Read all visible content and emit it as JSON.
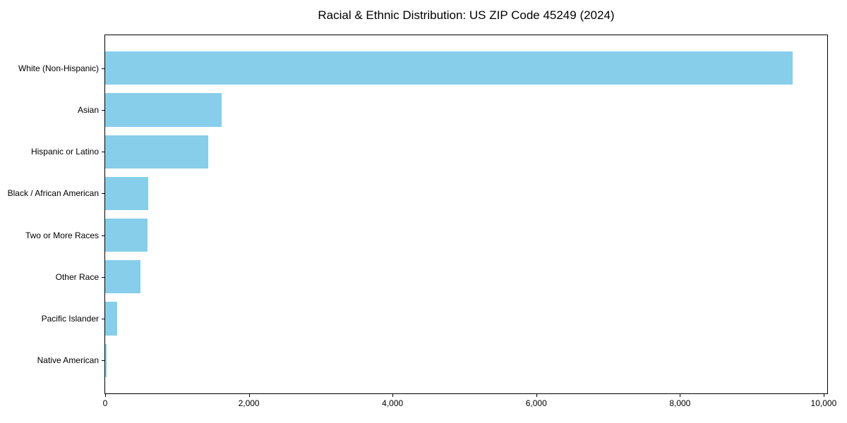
{
  "chart_data": {
    "type": "bar",
    "orientation": "horizontal",
    "title": "Racial & Ethnic Distribution: US ZIP Code 45249 (2024)",
    "categories": [
      "White (Non-Hispanic)",
      "Asian",
      "Hispanic or Latino",
      "Black / African American",
      "Two or More Races",
      "Other Race",
      "Pacific Islander",
      "Native American"
    ],
    "values": [
      9570,
      1625,
      1435,
      597,
      587,
      488,
      170,
      20
    ],
    "xlabel": "",
    "ylabel": "",
    "xlim": [
      0,
      10050
    ],
    "x_ticks": [
      {
        "value": 0,
        "label": "0"
      },
      {
        "value": 2000,
        "label": "2,000"
      },
      {
        "value": 4000,
        "label": "4,000"
      },
      {
        "value": 6000,
        "label": "6,000"
      },
      {
        "value": 8000,
        "label": "8,000"
      },
      {
        "value": 10000,
        "label": "10,000"
      }
    ],
    "grid": false,
    "legend": null,
    "bar_color": "#87CEEB",
    "spine_color": "#000000",
    "background_color": "#ffffff",
    "bar_width_fraction": 0.8,
    "category_axis_margin": 0.05
  }
}
